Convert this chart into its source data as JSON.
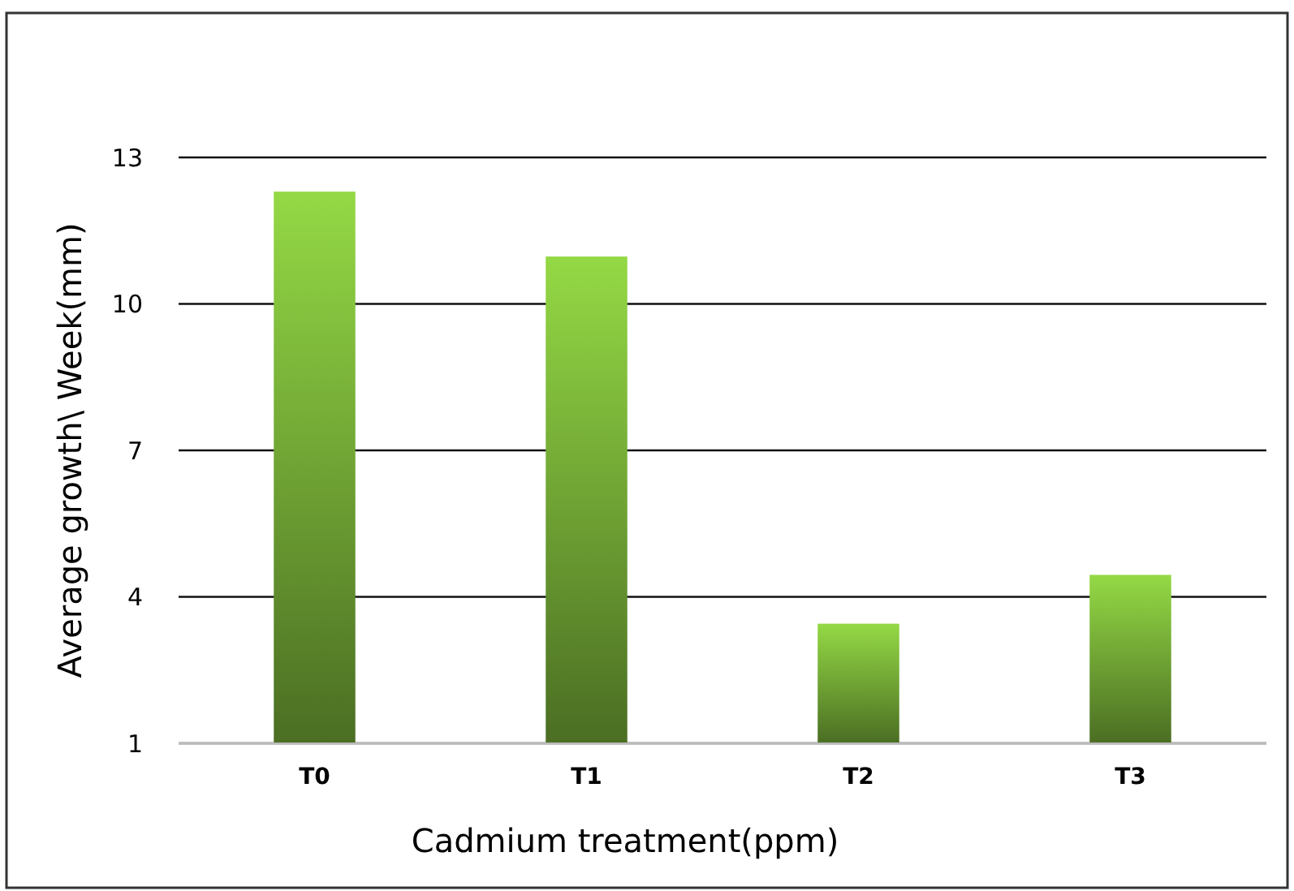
{
  "chart_data": {
    "type": "bar",
    "xlabel": "Cadmium treatment(ppm)",
    "ylabel": "Average growth\\ Week(mm)",
    "categories": [
      "T0",
      "T1",
      "T2",
      "T3"
    ],
    "values": [
      12.3,
      10.97,
      3.45,
      4.45
    ],
    "color": "#6fa334",
    "ylim": [
      1,
      13
    ],
    "yticks": [
      1,
      4,
      7,
      10,
      13
    ],
    "grid": "y"
  }
}
